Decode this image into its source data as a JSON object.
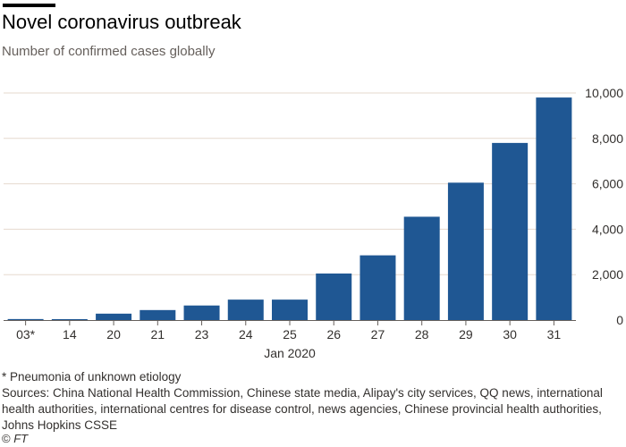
{
  "header": {
    "title": "Novel coronavirus outbreak",
    "subtitle": "Number of confirmed cases globally"
  },
  "chart_data": {
    "type": "bar",
    "categories": [
      "03*",
      "14",
      "20",
      "21",
      "23",
      "24",
      "25",
      "26",
      "27",
      "28",
      "29",
      "30",
      "31"
    ],
    "values": [
      44,
      41,
      282,
      440,
      641,
      900,
      900,
      2050,
      2850,
      4550,
      6050,
      7800,
      9800
    ],
    "title": "Novel coronavirus outbreak",
    "subtitle": "Number of confirmed cases globally",
    "xlabel": "Jan 2020",
    "ylabel": "",
    "ylim": [
      0,
      10000
    ],
    "yticks": [
      0,
      2000,
      4000,
      6000,
      8000,
      10000
    ],
    "ytick_labels": [
      "0",
      "2,000",
      "4,000",
      "6,000",
      "8,000",
      "10,000"
    ],
    "y_axis_side": "right",
    "grid": true,
    "bar_color": "#1f5793",
    "grid_color": "#e6d9ce"
  },
  "footer": {
    "footnote": "* Pneumonia of unknown etiology",
    "sources": "Sources: China National Health Commission, Chinese state media, Alipay's city services, QQ news, international health authorities, international centres for disease control, news agencies, Chinese provincial health authorities, Johns Hopkins CSSE",
    "credit_symbol": "©",
    "credit_name": "FT"
  }
}
